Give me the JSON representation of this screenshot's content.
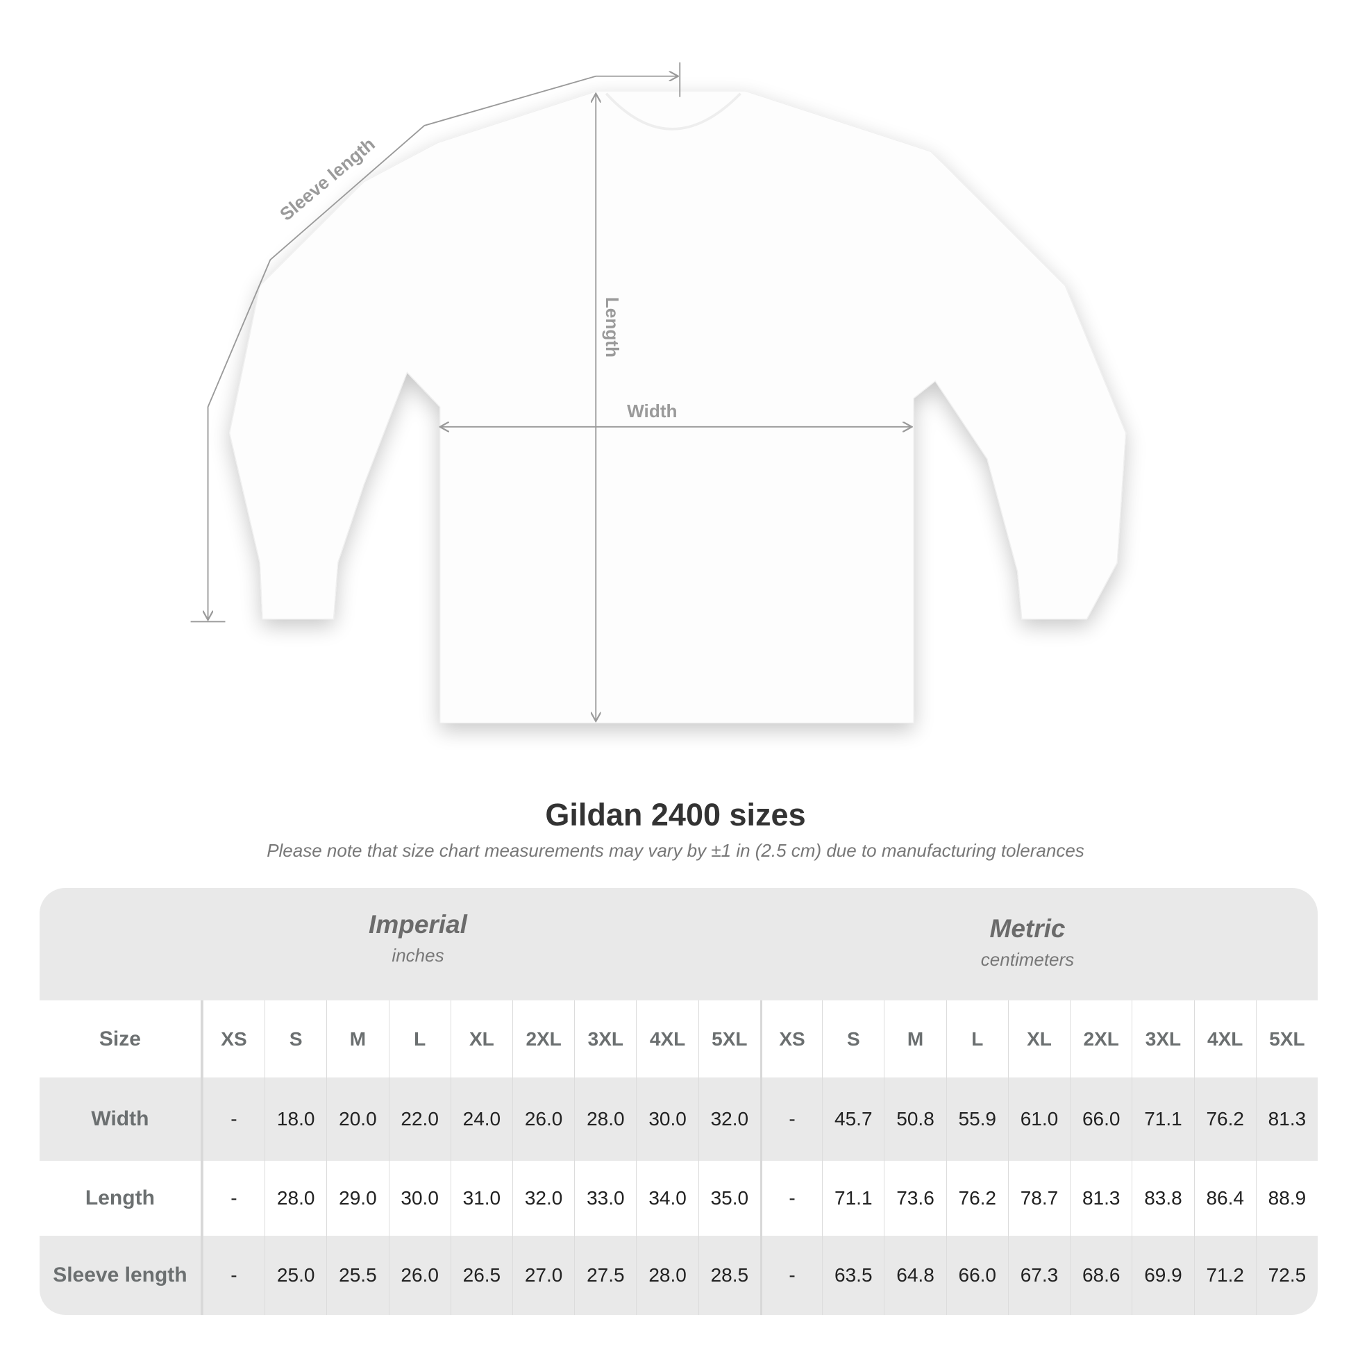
{
  "diagram": {
    "labels": {
      "sleeve": "Sleeve length",
      "length": "Length",
      "width": "Width"
    },
    "line_color": "#9a9a9a"
  },
  "title": "Gildan 2400 sizes",
  "subtitle": "Please note that size chart measurements may vary by ±1 in (2.5 cm) due to manufacturing tolerances",
  "table": {
    "imperial": {
      "name": "Imperial",
      "unit": "inches"
    },
    "metric": {
      "name": "Metric",
      "unit": "centimeters"
    },
    "size_label": "Size",
    "sizes": [
      "XS",
      "S",
      "M",
      "L",
      "XL",
      "2XL",
      "3XL",
      "4XL",
      "5XL"
    ],
    "rows": [
      {
        "label": "Width",
        "imperial": [
          "-",
          "18.0",
          "20.0",
          "22.0",
          "24.0",
          "26.0",
          "28.0",
          "30.0",
          "32.0"
        ],
        "metric": [
          "-",
          "45.7",
          "50.8",
          "55.9",
          "61.0",
          "66.0",
          "71.1",
          "76.2",
          "81.3"
        ]
      },
      {
        "label": "Length",
        "imperial": [
          "-",
          "28.0",
          "29.0",
          "30.0",
          "31.0",
          "32.0",
          "33.0",
          "34.0",
          "35.0"
        ],
        "metric": [
          "-",
          "71.1",
          "73.6",
          "76.2",
          "78.7",
          "81.3",
          "83.8",
          "86.4",
          "88.9"
        ]
      },
      {
        "label": "Sleeve length",
        "imperial": [
          "-",
          "25.0",
          "25.5",
          "26.0",
          "26.5",
          "27.0",
          "27.5",
          "28.0",
          "28.5"
        ],
        "metric": [
          "-",
          "63.5",
          "64.8",
          "66.0",
          "67.3",
          "68.6",
          "69.9",
          "71.2",
          "72.5"
        ]
      }
    ],
    "colors": {
      "header_bg": "#e9e9e9",
      "label_text": "#6b6f70"
    }
  }
}
